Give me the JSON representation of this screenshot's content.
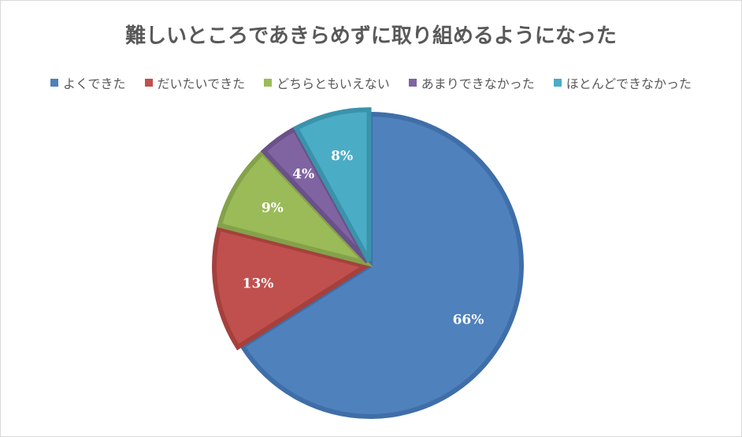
{
  "chart_data": {
    "type": "pie",
    "title": "難しいところであきらめずに取り組めるようになった",
    "categories": [
      "よくできた",
      "だいたいできた",
      "どちらともいえない",
      "あまりできなかった",
      "ほとんどできなかった"
    ],
    "values": [
      66,
      13,
      9,
      4,
      8
    ],
    "labels": [
      "66%",
      "13%",
      "9%",
      "4%",
      "8%"
    ],
    "colors": [
      "#4f81bd",
      "#c0504d",
      "#9bbb59",
      "#8064a2",
      "#4bacc6"
    ],
    "border_colors": [
      "#3f6ea8",
      "#a5403d",
      "#84a24a",
      "#6a5189",
      "#3a93ab"
    ],
    "legend_position": "top"
  }
}
